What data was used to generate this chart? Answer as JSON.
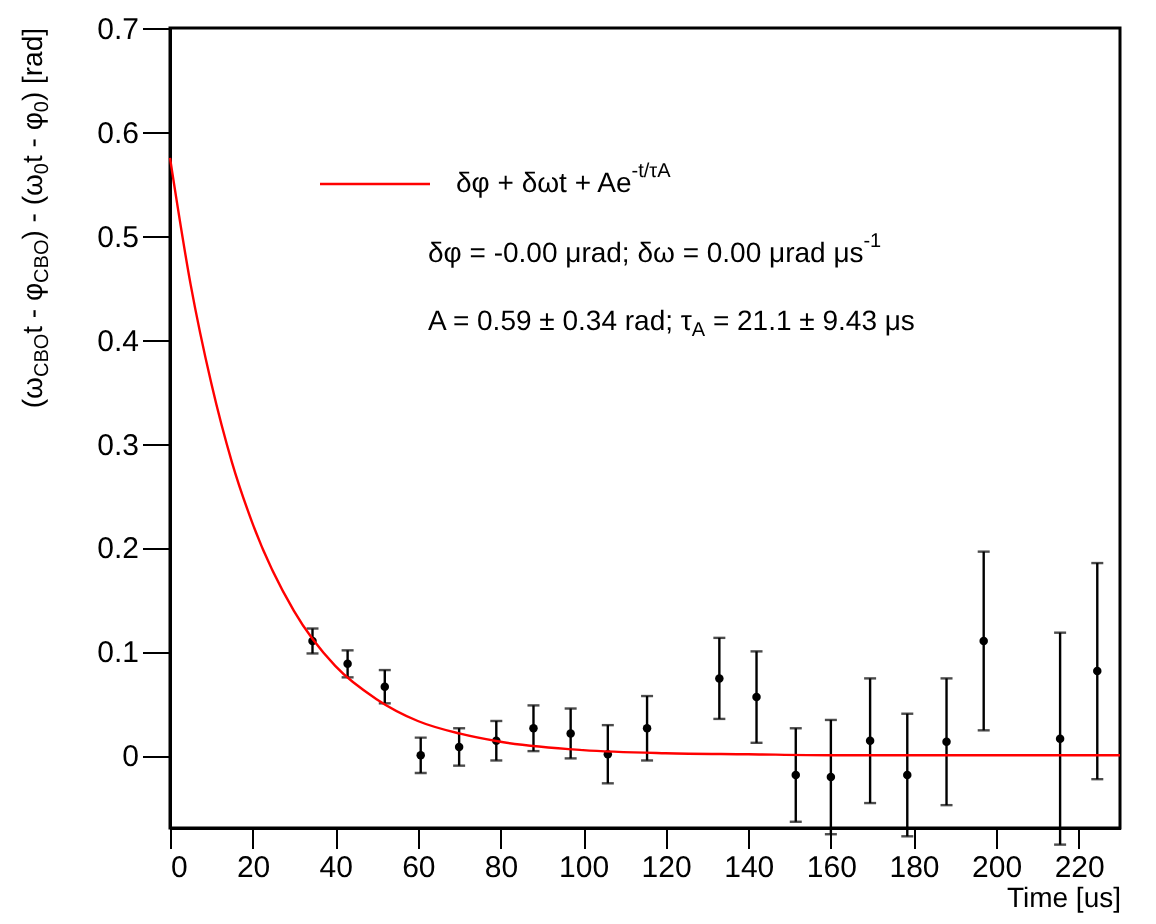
{
  "chart_data": {
    "type": "scatter",
    "xlabel": "Time [us]",
    "ylabel": "(ω$_{CBO}$t - φ$_{CBO}$) - (ω$_{0}$t - φ$_{0}$) [rad]",
    "xlim": [
      0,
      230
    ],
    "ylim": [
      -0.07,
      0.7
    ],
    "xticks": [
      0,
      20,
      40,
      60,
      80,
      100,
      120,
      140,
      160,
      180,
      200,
      220
    ],
    "yticks": [
      0,
      0.1,
      0.2,
      0.3,
      0.4,
      0.5,
      0.6,
      0.7
    ],
    "grid": false,
    "legend": "top",
    "marker": "circle",
    "annotations": [
      "δφ = -0.00 μrad; δω = 0.00 μrad μs$^{-1}$",
      "A = 0.59 ± 0.34 rad; τ$_{A}$ = 21.1 ± 9.43 μs"
    ],
    "series": [
      {
        "color": "#000000",
        "x": [
          34.5,
          43,
          52,
          60.7,
          70,
          79,
          88,
          97,
          106,
          115.5,
          133,
          142,
          151.5,
          160,
          169.5,
          178.5,
          188,
          197,
          215.5,
          224.5
        ],
        "values": [
          0.11,
          0.088,
          0.066,
          0.0,
          0.008,
          0.014,
          0.026,
          0.021,
          0.001,
          0.026,
          0.074,
          0.056,
          -0.019,
          -0.021,
          0.014,
          -0.019,
          0.013,
          0.11,
          0.016,
          0.081
        ],
        "errors": [
          0.012,
          0.013,
          0.016,
          0.017,
          0.018,
          0.019,
          0.022,
          0.024,
          0.028,
          0.031,
          0.039,
          0.044,
          0.045,
          0.055,
          0.06,
          0.059,
          0.061,
          0.086,
          0.102,
          0.104
        ]
      },
      {
        "type": "line",
        "name": "δφ + δωt + Ae$^{-t/τA}$",
        "color": "#ff0000",
        "line_style": "solid",
        "marker": "none",
        "x": [
          0,
          5,
          10,
          15,
          20,
          30,
          40,
          50,
          60,
          70,
          80,
          100,
          120,
          140,
          160,
          230
        ],
        "values": [
          0.575,
          0.453,
          0.358,
          0.282,
          0.223,
          0.139,
          0.086,
          0.054,
          0.033,
          0.021,
          0.013,
          0.005,
          0.002,
          0.001,
          0,
          0
        ]
      }
    ]
  }
}
